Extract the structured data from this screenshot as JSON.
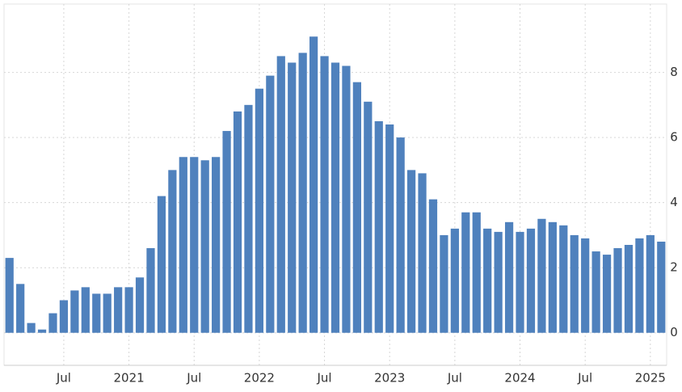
{
  "chart_data": {
    "type": "bar",
    "color": "#4f81bd",
    "categories": [
      null,
      null,
      null,
      null,
      null,
      "Jul",
      null,
      null,
      null,
      null,
      null,
      "2021",
      null,
      null,
      null,
      null,
      null,
      "Jul",
      null,
      null,
      null,
      null,
      null,
      "2022",
      null,
      null,
      null,
      null,
      null,
      "Jul",
      null,
      null,
      null,
      null,
      null,
      "2023",
      null,
      null,
      null,
      null,
      null,
      "Jul",
      null,
      null,
      null,
      null,
      null,
      "2024",
      null,
      null,
      null,
      null,
      null,
      "Jul",
      null,
      null,
      null,
      null,
      null,
      "2025",
      null
    ],
    "values": [
      2.3,
      1.5,
      0.3,
      0.1,
      0.6,
      1.0,
      1.3,
      1.4,
      1.2,
      1.2,
      1.4,
      1.4,
      1.7,
      2.6,
      4.2,
      5.0,
      5.4,
      5.4,
      5.3,
      5.4,
      6.2,
      6.8,
      7.0,
      7.5,
      7.9,
      8.5,
      8.3,
      8.6,
      9.1,
      8.5,
      8.3,
      8.2,
      7.7,
      7.1,
      6.5,
      6.4,
      6.0,
      5.0,
      4.9,
      4.1,
      3.0,
      3.2,
      3.7,
      3.7,
      3.2,
      3.1,
      3.4,
      3.1,
      3.2,
      3.5,
      3.4,
      3.3,
      3.0,
      2.9,
      2.5,
      2.4,
      2.6,
      2.7,
      2.9,
      3.0,
      2.8
    ],
    "ylim": [
      -1,
      10.1
    ],
    "yticks": [
      0,
      2,
      4,
      6,
      8
    ],
    "grid": true
  }
}
